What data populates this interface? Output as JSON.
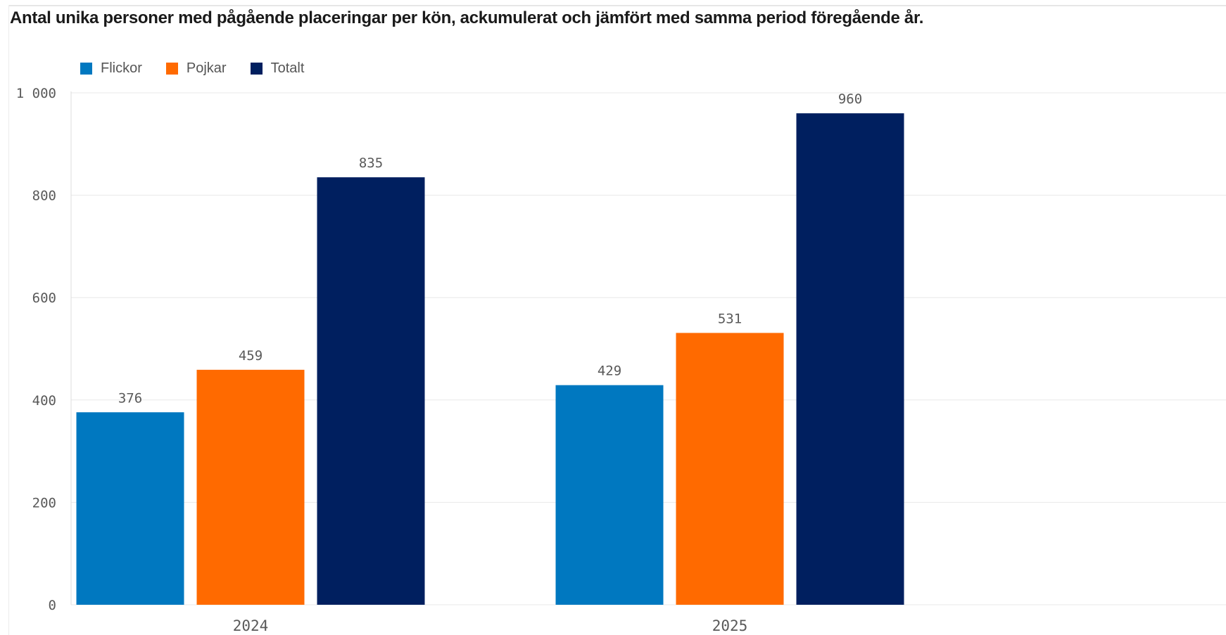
{
  "title": "Antal unika personer med pågående placeringar per kön, ackumulerat och jämfört med samma period föregående år.",
  "chart_data": {
    "type": "bar",
    "categories": [
      "2024",
      "2025"
    ],
    "series": [
      {
        "name": "Flickor",
        "color": "#0078c0",
        "values": [
          376,
          429
        ]
      },
      {
        "name": "Pojkar",
        "color": "#ff6a00",
        "values": [
          459,
          531
        ]
      },
      {
        "name": "Totalt",
        "color": "#001f5f",
        "values": [
          835,
          960
        ]
      }
    ],
    "ylim": [
      0,
      1000
    ],
    "yticks": [
      0,
      200,
      400,
      600,
      800,
      1000
    ],
    "ytick_labels": [
      "0",
      "200",
      "400",
      "600",
      "800",
      "1 000"
    ],
    "grid": true,
    "legend_position": "top-left"
  }
}
